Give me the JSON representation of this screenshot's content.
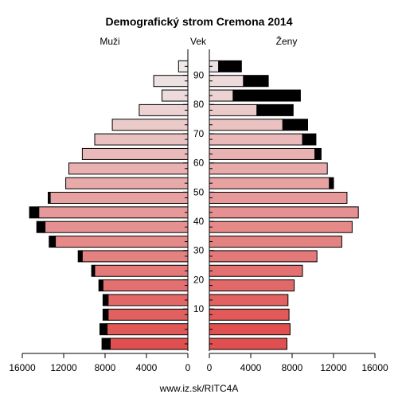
{
  "chart_data": {
    "type": "bar",
    "title": "Demografický strom Cremona 2014",
    "left_label": "Muži",
    "center_label": "Vek",
    "right_label": "Ženy",
    "footer": "www.iz.sk/RITC4A",
    "x_ticks": [
      16000,
      12000,
      8000,
      4000,
      0
    ],
    "x_ticks_right": [
      0,
      4000,
      8000,
      12000,
      16000
    ],
    "y_ticks": [
      "90",
      "80",
      "70",
      "60",
      "50",
      "40",
      "30",
      "20",
      "10"
    ],
    "xlim": [
      0,
      16000
    ],
    "age_groups": [
      "0-4",
      "5-9",
      "10-14",
      "15-19",
      "20-24",
      "25-29",
      "30-34",
      "35-39",
      "40-44",
      "45-49",
      "50-54",
      "55-59",
      "60-64",
      "65-69",
      "70-74",
      "75-79",
      "80-84",
      "85-89",
      "90-94",
      "95+"
    ],
    "series": [
      {
        "name": "Muži",
        "values": [
          7500,
          7800,
          7700,
          7700,
          8200,
          9000,
          10200,
          12800,
          13800,
          14400,
          13300,
          11800,
          11500,
          10200,
          9000,
          7300,
          4700,
          2500,
          3300,
          900
        ],
        "excess": [
          800,
          700,
          500,
          500,
          400,
          300,
          400,
          600,
          800,
          900,
          200,
          0,
          0,
          0,
          0,
          0,
          0,
          0,
          0,
          0
        ]
      },
      {
        "name": "Ženy",
        "values": [
          7500,
          7800,
          7700,
          7600,
          8200,
          9000,
          10400,
          12800,
          13800,
          14400,
          13300,
          11600,
          11400,
          10200,
          9000,
          7100,
          4600,
          2300,
          3300,
          900
        ],
        "excess": [
          0,
          0,
          0,
          0,
          0,
          0,
          0,
          0,
          0,
          0,
          0,
          400,
          0,
          600,
          1300,
          2400,
          3500,
          6500,
          2400,
          2200
        ]
      }
    ],
    "colors": {
      "gradient_start": "#e05050",
      "gradient_end": "#eeeaea",
      "excess": "#000000"
    }
  }
}
